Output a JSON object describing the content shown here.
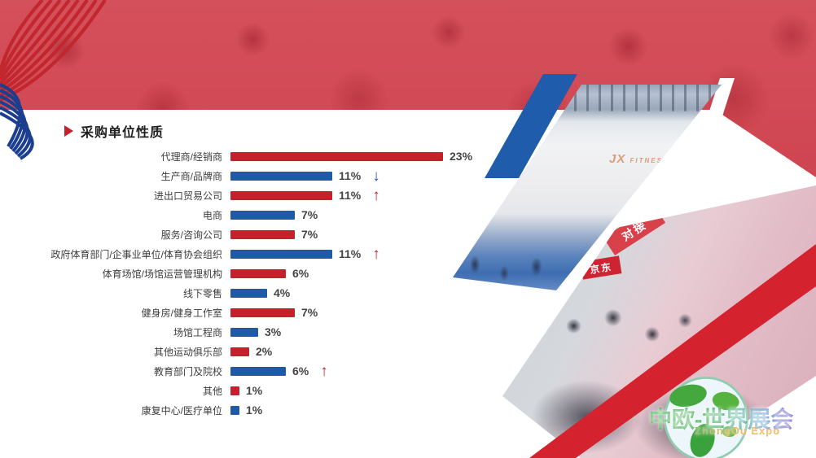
{
  "title": {
    "text": "采购单位性质"
  },
  "chart_data": {
    "type": "bar",
    "orientation": "horizontal",
    "value_unit": "%",
    "categories": [
      "代理商/经销商",
      "生产商/品牌商",
      "进出口贸易公司",
      "电商",
      "服务/咨询公司",
      "政府体育部门/企事业单位/体育协会组织",
      "体育场馆/场馆运营管理机构",
      "线下零售",
      "健身房/健身工作室",
      "场馆工程商",
      "其他运动俱乐部",
      "教育部门及院校",
      "其他",
      "康复中心/医疗单位"
    ],
    "values": [
      23,
      11,
      11,
      7,
      7,
      11,
      6,
      4,
      7,
      3,
      2,
      6,
      1,
      1
    ],
    "value_labels": [
      "23%",
      "11%",
      "11%",
      "7%",
      "7%",
      "11%",
      "6%",
      "4%",
      "7%",
      "3%",
      "2%",
      "6%",
      "1%",
      "1%"
    ],
    "bar_colors": [
      "red",
      "blue",
      "red",
      "blue",
      "red",
      "blue",
      "red",
      "blue",
      "red",
      "blue",
      "red",
      "blue",
      "red",
      "blue"
    ],
    "trend_arrows": [
      null,
      "down",
      "up",
      null,
      null,
      "up",
      null,
      null,
      null,
      null,
      null,
      "up",
      null,
      null
    ],
    "palette": {
      "red": "#c6202b",
      "blue": "#1e5aa8",
      "banner_red": "#d24a55",
      "band_blue": "#1f5cab",
      "band_red": "#d4222e"
    }
  },
  "photos": {
    "top_photo": {
      "jx_logo": "JX",
      "jx_sub": "FITNESS"
    },
    "bottom_photo": {
      "duijie_sign": "对接",
      "jd_sign": "京东"
    }
  },
  "logo": {
    "zh": "中欧-世界展会",
    "en": "ZhongOu Expo"
  }
}
